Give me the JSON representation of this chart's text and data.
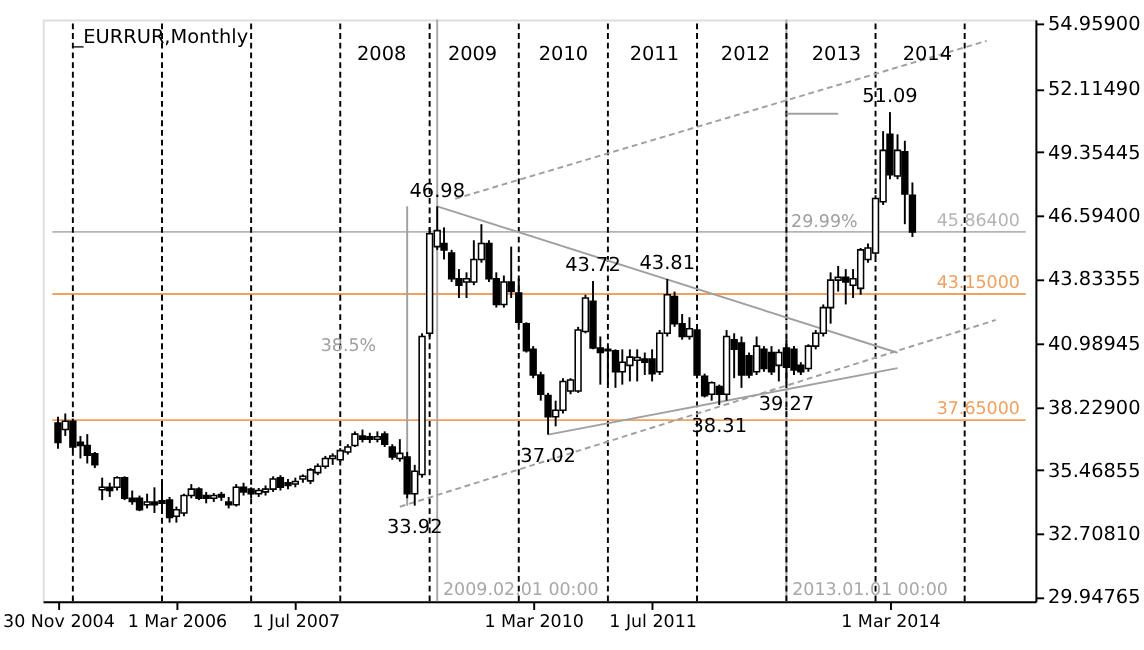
{
  "chart_data": {
    "type": "candlestick",
    "title": "_EURRUR,Monthly",
    "x": [
      "2004-11",
      "2004-12",
      "2005-01",
      "2005-02",
      "2005-03",
      "2005-04",
      "2005-05",
      "2005-06",
      "2005-07",
      "2005-08",
      "2005-09",
      "2005-10",
      "2005-11",
      "2005-12",
      "2006-01",
      "2006-02",
      "2006-03",
      "2006-04",
      "2006-05",
      "2006-06",
      "2006-07",
      "2006-08",
      "2006-09",
      "2006-10",
      "2006-11",
      "2006-12",
      "2007-01",
      "2007-02",
      "2007-03",
      "2007-04",
      "2007-05",
      "2007-06",
      "2007-07",
      "2007-08",
      "2007-09",
      "2007-10",
      "2007-11",
      "2007-12",
      "2008-01",
      "2008-02",
      "2008-03",
      "2008-04",
      "2008-05",
      "2008-06",
      "2008-07",
      "2008-08",
      "2008-09",
      "2008-10",
      "2008-11",
      "2008-12",
      "2009-01",
      "2009-02",
      "2009-03",
      "2009-04",
      "2009-05",
      "2009-06",
      "2009-07",
      "2009-08",
      "2009-09",
      "2009-10",
      "2009-11",
      "2009-12",
      "2010-01",
      "2010-02",
      "2010-03",
      "2010-04",
      "2010-05",
      "2010-06",
      "2010-07",
      "2010-08",
      "2010-09",
      "2010-10",
      "2010-11",
      "2010-12",
      "2011-01",
      "2011-02",
      "2011-03",
      "2011-04",
      "2011-05",
      "2011-06",
      "2011-07",
      "2011-08",
      "2011-09",
      "2011-10",
      "2011-11",
      "2011-12",
      "2012-01",
      "2012-02",
      "2012-03",
      "2012-04",
      "2012-05",
      "2012-06",
      "2012-07",
      "2012-08",
      "2012-09",
      "2012-10",
      "2012-11",
      "2012-12",
      "2013-01",
      "2013-02",
      "2013-03",
      "2013-04",
      "2013-05",
      "2013-06",
      "2013-07",
      "2013-08",
      "2013-09",
      "2013-10",
      "2013-11",
      "2013-12",
      "2014-01",
      "2014-02",
      "2014-03",
      "2014-04",
      "2014-05",
      "2014-06"
    ],
    "ohlc": [
      [
        37.52,
        37.8,
        36.4,
        36.68
      ],
      [
        37.24,
        37.94,
        36.96,
        37.6
      ],
      [
        37.6,
        37.72,
        36.32,
        36.48
      ],
      [
        36.68,
        36.96,
        35.98,
        36.54
      ],
      [
        36.54,
        37.04,
        35.76,
        36.12
      ],
      [
        36.18,
        36.26,
        35.56,
        35.7
      ],
      [
        34.61,
        35.14,
        34.16,
        34.72
      ],
      [
        34.72,
        34.92,
        34.3,
        34.58
      ],
      [
        34.72,
        35.2,
        34.58,
        35.14
      ],
      [
        35.14,
        35.2,
        34.16,
        34.24
      ],
      [
        34.24,
        34.58,
        33.96,
        34.1
      ],
      [
        34.24,
        34.36,
        33.68,
        33.74
      ],
      [
        33.96,
        34.44,
        33.8,
        34.08
      ],
      [
        34.08,
        34.72,
        33.6,
        33.96
      ],
      [
        34.13,
        34.92,
        33.74,
        34.02
      ],
      [
        34.16,
        34.3,
        33.18,
        33.4
      ],
      [
        33.46,
        33.88,
        33.18,
        33.74
      ],
      [
        33.6,
        34.44,
        33.46,
        34.36
      ],
      [
        34.36,
        34.86,
        34.24,
        34.64
      ],
      [
        34.64,
        34.72,
        34.16,
        34.24
      ],
      [
        34.36,
        34.52,
        34.02,
        34.24
      ],
      [
        34.24,
        34.47,
        34.08,
        34.36
      ],
      [
        34.41,
        34.52,
        34.13,
        34.3
      ],
      [
        34.08,
        34.3,
        33.8,
        33.96
      ],
      [
        33.96,
        34.86,
        33.88,
        34.72
      ],
      [
        34.72,
        34.92,
        34.36,
        34.52
      ],
      [
        34.64,
        34.72,
        34.24,
        34.44
      ],
      [
        34.44,
        34.69,
        34.3,
        34.58
      ],
      [
        34.52,
        34.8,
        34.36,
        34.64
      ],
      [
        34.64,
        35.2,
        34.52,
        35.08
      ],
      [
        35.14,
        35.25,
        34.58,
        34.72
      ],
      [
        34.92,
        35.08,
        34.64,
        34.8
      ],
      [
        34.86,
        35.14,
        34.72,
        34.97
      ],
      [
        35.08,
        35.28,
        34.92,
        35.2
      ],
      [
        35.0,
        35.56,
        34.86,
        35.48
      ],
      [
        35.36,
        35.76,
        35.25,
        35.64
      ],
      [
        35.64,
        36.09,
        35.53,
        35.98
      ],
      [
        35.98,
        36.2,
        35.7,
        36.09
      ],
      [
        35.92,
        36.43,
        35.81,
        36.32
      ],
      [
        36.26,
        36.6,
        36.15,
        36.48
      ],
      [
        36.54,
        37.16,
        36.48,
        37.04
      ],
      [
        36.96,
        37.24,
        36.68,
        36.82
      ],
      [
        36.93,
        37.1,
        36.65,
        36.82
      ],
      [
        36.82,
        37.16,
        36.68,
        36.93
      ],
      [
        37.04,
        37.16,
        36.48,
        36.6
      ],
      [
        36.48,
        36.6,
        35.92,
        36.04
      ],
      [
        35.98,
        36.82,
        35.84,
        36.2
      ],
      [
        36.04,
        36.26,
        34.24,
        34.44
      ],
      [
        34.44,
        35.7,
        33.92,
        35.42
      ],
      [
        35.28,
        41.44,
        35.14,
        41.3
      ],
      [
        41.44,
        46.06,
        41.3,
        45.78
      ],
      [
        45.22,
        46.98,
        45.08,
        45.92
      ],
      [
        45.36,
        46.06,
        44.66,
        45.08
      ],
      [
        44.94,
        45.08,
        43.68,
        43.82
      ],
      [
        43.82,
        44.24,
        42.98,
        43.54
      ],
      [
        43.68,
        44.1,
        42.98,
        43.82
      ],
      [
        43.68,
        45.5,
        43.54,
        44.66
      ],
      [
        44.66,
        46.2,
        44.52,
        45.36
      ],
      [
        45.36,
        45.5,
        43.68,
        43.82
      ],
      [
        43.82,
        44.1,
        42.56,
        42.7
      ],
      [
        42.7,
        43.96,
        42.56,
        43.68
      ],
      [
        43.68,
        45.22,
        42.98,
        43.26
      ],
      [
        43.2,
        43.82,
        41.8,
        41.92
      ],
      [
        41.86,
        41.92,
        40.6,
        40.68
      ],
      [
        40.74,
        40.88,
        39.48,
        39.62
      ],
      [
        39.62,
        39.76,
        38.5,
        38.78
      ],
      [
        38.72,
        38.84,
        37.02,
        37.8
      ],
      [
        37.8,
        38.5,
        37.38,
        38.08
      ],
      [
        38.08,
        39.48,
        37.94,
        39.34
      ],
      [
        38.92,
        39.48,
        38.78,
        39.4
      ],
      [
        38.92,
        41.72,
        38.84,
        41.58
      ],
      [
        41.52,
        43.12,
        41.44,
        42.98
      ],
      [
        42.84,
        43.72,
        40.74,
        40.8
      ],
      [
        40.8,
        41.3,
        39.2,
        40.6
      ],
      [
        40.74,
        40.88,
        39.2,
        40.68
      ],
      [
        40.68,
        40.74,
        39.06,
        39.76
      ],
      [
        39.76,
        40.74,
        39.2,
        40.18
      ],
      [
        40.04,
        40.74,
        39.34,
        40.4
      ],
      [
        40.26,
        40.74,
        39.34,
        40.38
      ],
      [
        40.32,
        40.6,
        39.62,
        40.18
      ],
      [
        40.32,
        40.74,
        39.34,
        39.68
      ],
      [
        39.76,
        41.58,
        39.62,
        41.44
      ],
      [
        41.44,
        43.81,
        41.3,
        43.12
      ],
      [
        43.04,
        43.26,
        41.72,
        41.86
      ],
      [
        41.86,
        42.28,
        41.16,
        41.3
      ],
      [
        41.3,
        42.14,
        41.16,
        41.64
      ],
      [
        41.58,
        41.64,
        39.48,
        39.62
      ],
      [
        39.56,
        39.68,
        38.64,
        38.72
      ],
      [
        38.78,
        39.34,
        38.5,
        39.28
      ],
      [
        39.12,
        39.2,
        38.31,
        38.78
      ],
      [
        38.78,
        41.58,
        38.5,
        41.3
      ],
      [
        41.16,
        41.44,
        39.48,
        40.74
      ],
      [
        41.02,
        41.3,
        39.06,
        39.62
      ],
      [
        40.46,
        40.6,
        39.48,
        39.62
      ],
      [
        39.76,
        41.3,
        39.62,
        40.88
      ],
      [
        40.74,
        40.88,
        39.76,
        39.9
      ],
      [
        40.6,
        40.88,
        39.62,
        39.76
      ],
      [
        40.04,
        40.74,
        39.34,
        40.6
      ],
      [
        40.8,
        41.16,
        39.27,
        39.96
      ],
      [
        40.74,
        40.88,
        39.62,
        39.84
      ],
      [
        40.04,
        40.18,
        39.62,
        39.76
      ],
      [
        39.9,
        40.96,
        39.76,
        40.88
      ],
      [
        40.88,
        41.58,
        40.74,
        41.44
      ],
      [
        41.44,
        42.7,
        41.3,
        42.56
      ],
      [
        42.56,
        44.1,
        41.86,
        43.76
      ],
      [
        43.76,
        44.38,
        43.26,
        43.88
      ],
      [
        43.88,
        44.24,
        42.7,
        43.68
      ],
      [
        43.54,
        44.24,
        42.98,
        43.82
      ],
      [
        43.4,
        45.16,
        43.12,
        45.08
      ],
      [
        44.66,
        45.36,
        44.52,
        45.16
      ],
      [
        44.94,
        47.46,
        44.8,
        47.32
      ],
      [
        47.18,
        50.26,
        47.04,
        49.42
      ],
      [
        50.12,
        51.09,
        48.16,
        48.36
      ],
      [
        48.3,
        50.12,
        48.16,
        49.42
      ],
      [
        49.36,
        49.84,
        46.2,
        47.52
      ],
      [
        47.46,
        48.02,
        45.64,
        45.864
      ]
    ],
    "series": [
      {
        "type": "line",
        "color": "#a0a0a0",
        "line_style": "solid",
        "x": [
          "2009-02",
          "2014-04"
        ],
        "values": [
          46.98,
          40.59
        ]
      },
      {
        "type": "line",
        "color": "#a0a0a0",
        "line_style": "solid",
        "x": [
          "2010-05",
          "2014-04"
        ],
        "values": [
          37.02,
          39.92
        ]
      },
      {
        "type": "line",
        "color": "#a0a0a0",
        "line_style": "dashed",
        "x": [
          "2009-04-16",
          "2015-04"
        ],
        "values": [
          47.31,
          54.2
        ]
      },
      {
        "type": "line",
        "color": "#a0a0a0",
        "line_style": "dashed",
        "x": [
          "2008-09",
          "2015-05-08"
        ],
        "values": [
          33.87,
          42.02
        ]
      },
      {
        "type": "line",
        "color": "#a0a0a0",
        "line_style": "solid",
        "x": [
          "2008-10",
          "2008-10"
        ],
        "values": [
          46.98,
          33.92
        ]
      },
      {
        "type": "line",
        "color": "#a0a0a0",
        "line_style": "solid",
        "x": [
          "2013-01",
          "2013-08"
        ],
        "values": [
          51.02,
          51.02
        ]
      }
    ],
    "xlim": [
      "2004-10-09",
      "2015-09-08"
    ],
    "xticks": [
      {
        "value": "2004-11",
        "label": "30 Nov 2004"
      },
      {
        "value": "2006-03",
        "label": "1 Mar 2006"
      },
      {
        "value": "2007-07",
        "label": "1 Jul 2007"
      },
      {
        "value": "2010-03",
        "label": "1 Mar 2010"
      },
      {
        "value": "2011-07",
        "label": "1 Jul 2011"
      },
      {
        "value": "2014-03",
        "label": "1 Mar 2014"
      }
    ],
    "x2lim": [
      "2004-10-09",
      "2015-09-08"
    ],
    "x2ticks": [
      {
        "value": "2008-07",
        "label": "2008"
      },
      {
        "value": "2009-07",
        "label": "2009"
      },
      {
        "value": "2010-07",
        "label": "2010"
      },
      {
        "value": "2011-07",
        "label": "2011"
      },
      {
        "value": "2012-07",
        "label": "2012"
      },
      {
        "value": "2013-07",
        "label": "2013"
      },
      {
        "value": "2014-07",
        "label": "2014"
      }
    ],
    "ylim": [
      29.75,
      55.13
    ],
    "yticks": [
      {
        "value": 54.959,
        "label": "54.95900"
      },
      {
        "value": 52.1149,
        "label": "52.11490"
      },
      {
        "value": 49.35445,
        "label": "49.35445"
      },
      {
        "value": 46.594,
        "label": "46.59400"
      },
      {
        "value": 43.83355,
        "label": "43.83355"
      },
      {
        "value": 40.98945,
        "label": "40.98945"
      },
      {
        "value": 38.229,
        "label": "38.22900"
      },
      {
        "value": 35.46855,
        "label": "35.46855"
      },
      {
        "value": 32.7081,
        "label": "32.70810"
      },
      {
        "value": 29.94765,
        "label": "29.94765"
      }
    ],
    "grid": false,
    "ref_lines": [
      {
        "axis": "y",
        "value": 43.15,
        "label": "43.15000",
        "color": "#f0a060"
      },
      {
        "axis": "y",
        "value": 37.65,
        "label": "37.65000",
        "color": "#f0a060"
      },
      {
        "axis": "y",
        "value": 45.864,
        "label": "45.86400",
        "color": "#b4b4b4"
      },
      {
        "axis": "x",
        "value": "2009-02",
        "label": "2009.02.01 00:00",
        "color": "#a8a8a8"
      },
      {
        "axis": "x",
        "value": "2013-01",
        "label": "2013.01.01 00:00",
        "color": "#a8a8a8"
      },
      {
        "axis": "x",
        "value": "2005-01",
        "label": null,
        "color": "#000000",
        "line_style": "dashed"
      },
      {
        "axis": "x",
        "value": "2006-01",
        "label": null,
        "color": "#000000",
        "line_style": "dashed"
      },
      {
        "axis": "x",
        "value": "2007-01",
        "label": null,
        "color": "#000000",
        "line_style": "dashed"
      },
      {
        "axis": "x",
        "value": "2008-01",
        "label": null,
        "color": "#000000",
        "line_style": "dashed"
      },
      {
        "axis": "x",
        "value": "2009-01",
        "label": null,
        "color": "#000000",
        "line_style": "dashed"
      },
      {
        "axis": "x",
        "value": "2010-01",
        "label": null,
        "color": "#000000",
        "line_style": "dashed"
      },
      {
        "axis": "x",
        "value": "2011-01",
        "label": null,
        "color": "#000000",
        "line_style": "dashed"
      },
      {
        "axis": "x",
        "value": "2012-01",
        "label": null,
        "color": "#000000",
        "line_style": "dashed"
      },
      {
        "axis": "x",
        "value": "2013-01",
        "label": null,
        "color": "#000000",
        "line_style": "dashed"
      },
      {
        "axis": "x",
        "value": "2014-01",
        "label": null,
        "color": "#000000",
        "line_style": "dashed"
      },
      {
        "axis": "x",
        "value": "2015-01",
        "label": null,
        "color": "#000000",
        "line_style": "dashed"
      }
    ],
    "annotations": [
      {
        "text": "46.98",
        "x": "2009-02",
        "y": 46.98
      },
      {
        "text": "33.92",
        "x": "2008-11",
        "y": 33.92
      },
      {
        "text": "43.72",
        "x": "2010-11",
        "y": 43.72
      },
      {
        "text": "37.02",
        "x": "2010-05",
        "y": 37.02
      },
      {
        "text": "43.81",
        "x": "2011-09",
        "y": 43.81
      },
      {
        "text": "38.31",
        "x": "2012-04",
        "y": 38.31
      },
      {
        "text": "39.27",
        "x": "2013-01",
        "y": 39.27
      },
      {
        "text": "51.09",
        "x": "2014-03",
        "y": 51.09
      },
      "38.5%",
      "29.99%"
    ]
  }
}
